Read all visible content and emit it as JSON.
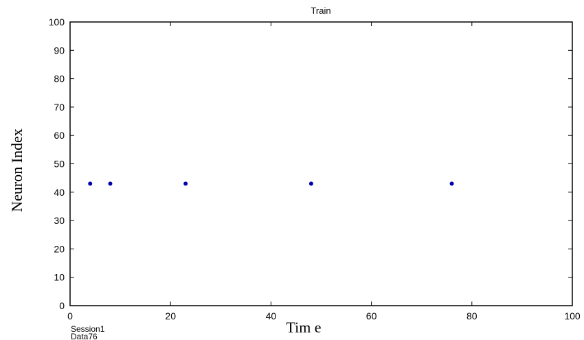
{
  "chart_data": {
    "type": "scatter",
    "title": "Train",
    "xlabel": "Tim e",
    "ylabel": "Neuron Index",
    "xlim": [
      0,
      100
    ],
    "ylim": [
      0,
      100
    ],
    "xticks": [
      0,
      20,
      40,
      60,
      80,
      100
    ],
    "yticks": [
      0,
      10,
      20,
      30,
      40,
      50,
      60,
      70,
      80,
      90,
      100
    ],
    "grid": false,
    "marker_color": "#0000aa",
    "series": [
      {
        "points": [
          {
            "x": 4,
            "y": 43
          },
          {
            "x": 8,
            "y": 43
          },
          {
            "x": 23,
            "y": 43
          },
          {
            "x": 48,
            "y": 43
          },
          {
            "x": 76,
            "y": 43
          }
        ]
      }
    ]
  },
  "annotations": {
    "line1": "Session1",
    "line2": "Data76"
  }
}
